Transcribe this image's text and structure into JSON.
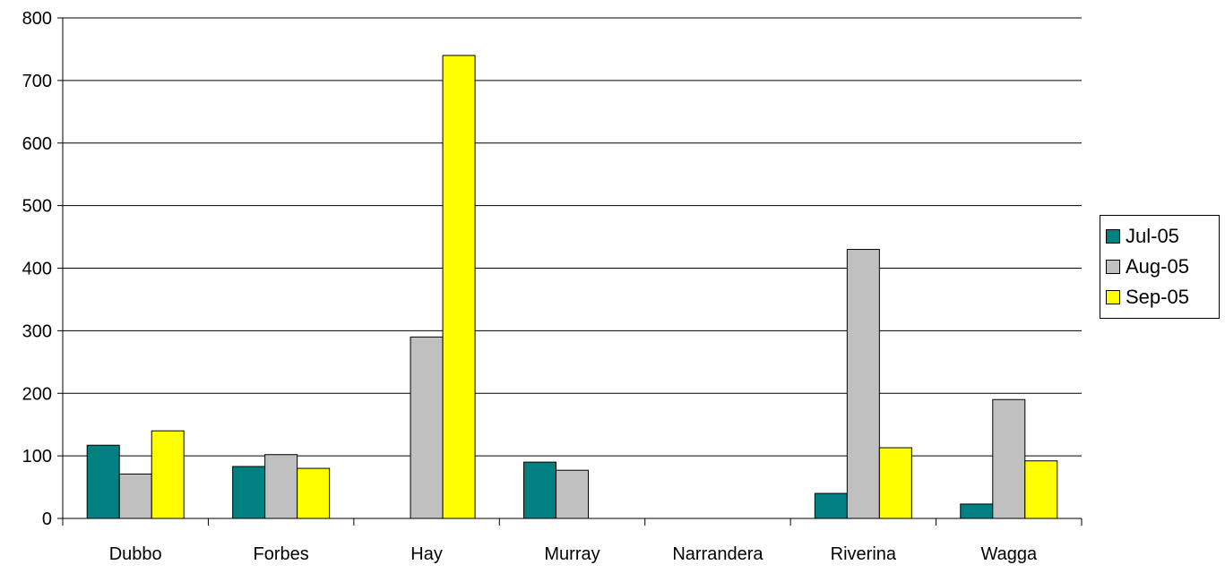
{
  "chart_data": {
    "type": "bar",
    "categories": [
      "Dubbo",
      "Forbes",
      "Hay",
      "Murray",
      "Narrandera",
      "Riverina",
      "Wagga"
    ],
    "series": [
      {
        "name": "Jul-05",
        "color": "#008080",
        "values": [
          117,
          83,
          0,
          90,
          0,
          40,
          23
        ]
      },
      {
        "name": "Aug-05",
        "color": "#c0c0c0",
        "values": [
          71,
          102,
          290,
          77,
          0,
          430,
          190
        ]
      },
      {
        "name": "Sep-05",
        "color": "#ffff00",
        "values": [
          140,
          80,
          740,
          0,
          0,
          113,
          92
        ]
      }
    ],
    "yticks": [
      "0",
      "100",
      "200",
      "300",
      "400",
      "500",
      "600",
      "700",
      "800"
    ],
    "ylim": [
      0,
      800
    ],
    "grid": true,
    "legend_position": "right"
  }
}
